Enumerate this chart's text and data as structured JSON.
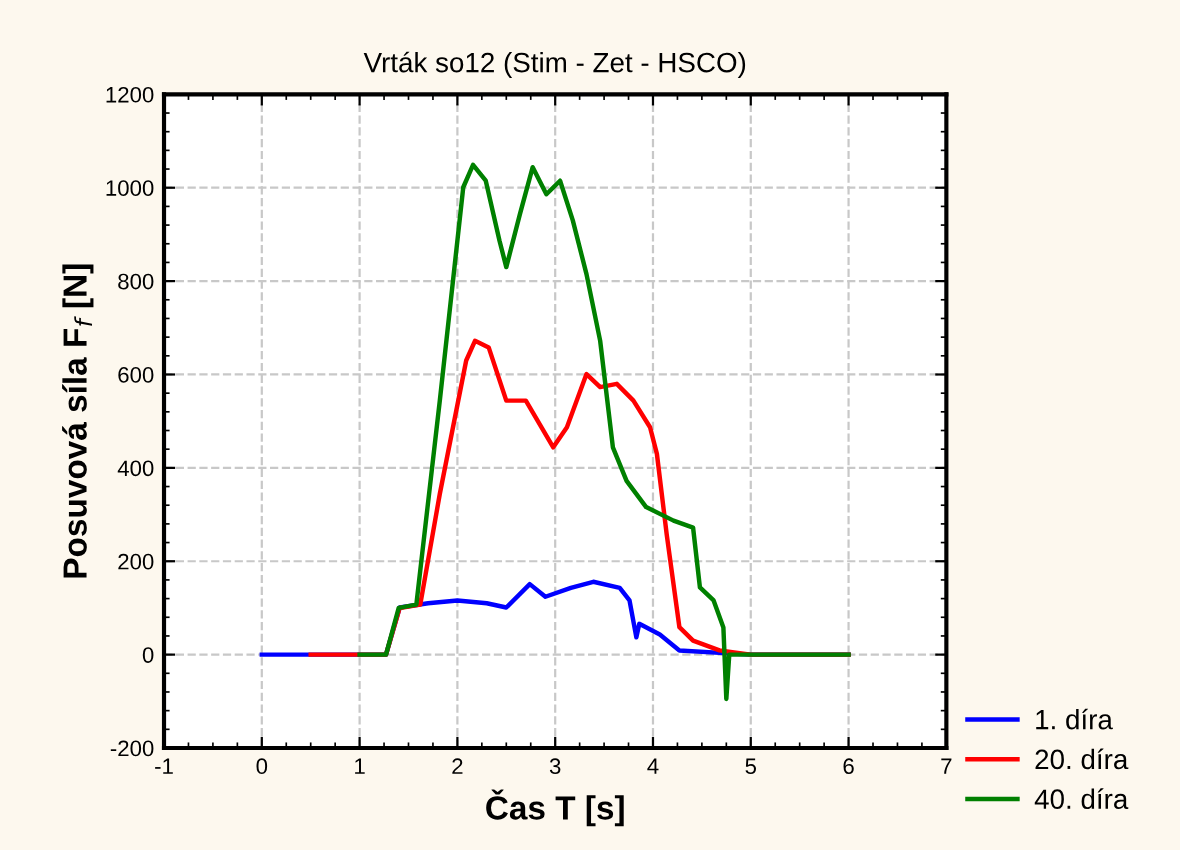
{
  "chart_data": {
    "type": "line",
    "title": "Vrták so12 (Stim - Zet - HSCO)",
    "xlabel": "Čas T [s]",
    "ylabel": "Posuvová síla F$_{f}$ [N]",
    "xlim": [
      -1,
      7
    ],
    "xticks": [
      -1,
      0,
      1,
      2,
      3,
      4,
      5,
      6,
      7
    ],
    "ylim": [
      -200,
      1200
    ],
    "yticks": [
      -200,
      0,
      200,
      400,
      600,
      800,
      1000,
      1200
    ],
    "grid": true,
    "legend": "bottom right",
    "line_style": "solid",
    "marker": "none",
    "series": [
      {
        "name": "1. díra",
        "color": "#0000ff",
        "x": [
          0,
          1.27,
          1.41,
          1.7,
          2.0,
          2.3,
          2.5,
          2.74,
          2.9,
          3.16,
          3.39,
          3.66,
          3.76,
          3.83,
          3.86,
          4.07,
          4.27,
          5.0,
          6.0
        ],
        "values": [
          0,
          0,
          101,
          110,
          116,
          110,
          101,
          151,
          124,
          143,
          156,
          143,
          116,
          37,
          66,
          43,
          9,
          0,
          0
        ]
      },
      {
        "name": "20. díra",
        "color": "#ff0000",
        "x": [
          0.5,
          1.27,
          1.41,
          1.62,
          1.82,
          2.09,
          2.18,
          2.32,
          2.5,
          2.7,
          2.98,
          3.12,
          3.32,
          3.46,
          3.63,
          3.8,
          3.97,
          4.04,
          4.14,
          4.27,
          4.41,
          4.68,
          5.0,
          6.0
        ],
        "values": [
          0,
          0,
          100,
          107,
          344,
          630,
          672,
          658,
          544,
          544,
          444,
          487,
          601,
          573,
          580,
          544,
          487,
          430,
          258,
          59,
          30,
          9,
          0,
          0
        ]
      },
      {
        "name": "40. díra",
        "color": "#008000",
        "x": [
          1.0,
          1.27,
          1.4,
          1.58,
          1.82,
          2.06,
          2.16,
          2.29,
          2.43,
          2.5,
          2.64,
          2.77,
          2.91,
          3.05,
          3.18,
          3.32,
          3.46,
          3.59,
          3.73,
          3.93,
          4.21,
          4.41,
          4.48,
          4.62,
          4.72,
          4.75,
          4.78,
          5.0,
          6.0
        ],
        "values": [
          0,
          0,
          100,
          107,
          544,
          1001,
          1049,
          1015,
          887,
          830,
          944,
          1044,
          986,
          1015,
          930,
          815,
          672,
          444,
          372,
          316,
          287,
          272,
          144,
          116,
          58,
          -95,
          0,
          0,
          0
        ]
      }
    ]
  }
}
